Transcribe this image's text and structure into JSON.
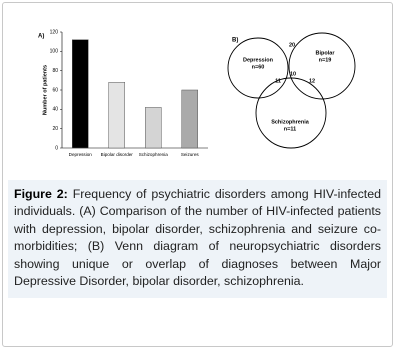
{
  "chart_data": [
    {
      "type": "bar",
      "panel": "A)",
      "ylabel": "Number of patients",
      "categories": [
        "Depression",
        "Bipolar disorder",
        "Schizophrenia",
        "Seizures"
      ],
      "values": [
        112,
        68,
        42,
        60
      ],
      "colors": [
        "#000000",
        "#e4e4e4",
        "#d4d4d4",
        "#aaaaaa"
      ],
      "ylim": [
        0,
        120
      ],
      "yticks": [
        0,
        20,
        40,
        60,
        80,
        100,
        120
      ],
      "grid": false
    },
    {
      "type": "venn",
      "panel": "B)",
      "sets": [
        {
          "name": "Depression",
          "count": "n=60"
        },
        {
          "name": "Bipolar",
          "count": "n=19"
        },
        {
          "name": "Schizophrenia",
          "count": "n=11"
        }
      ],
      "regions": [
        20,
        10,
        11,
        12
      ]
    }
  ],
  "caption": {
    "label": "Figure 2:",
    "text": "Frequency of psychiatric disorders among HIV-infected individuals. (A) Comparison of the number of HIV-infected patients with depression, bipolar disorder, schizophrenia and seizure co-morbidities; (B) Venn diagram of neuropsychiatric disorders showing unique or overlap of diagnoses between Major Depressive Disorder, bipolar disorder, schizophrenia."
  }
}
